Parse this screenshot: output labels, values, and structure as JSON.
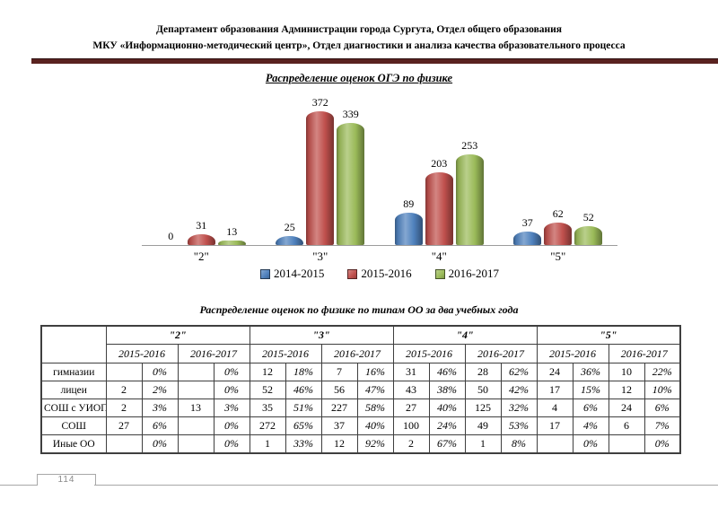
{
  "header": {
    "line1": "Департамент образования Администрации города Сургута, Отдел общего образования",
    "line2": "МКУ «Информационно-методический центр», Отдел диагностики и анализа качества образовательного процесса"
  },
  "chart_data": {
    "type": "bar",
    "title": "Распределение оценок ОГЭ по физике",
    "categories": [
      "\"2\"",
      "\"3\"",
      "\"4\"",
      "\"5\""
    ],
    "series": [
      {
        "name": "2014-2015",
        "color": "#4f81bd",
        "values": [
          0,
          25,
          89,
          37
        ]
      },
      {
        "name": "2015-2016",
        "color": "#c0504d",
        "values": [
          31,
          372,
          203,
          62
        ]
      },
      {
        "name": "2016-2017",
        "color": "#9bbb59",
        "values": [
          13,
          339,
          253,
          52
        ]
      }
    ],
    "xlabel": "",
    "ylabel": "",
    "ylim": [
      0,
      400
    ],
    "grid": false,
    "data_labels": true,
    "legend_position": "bottom"
  },
  "table": {
    "title": "Распределение оценок по физике по типам ОО за два учебных года",
    "group_headers": [
      "\"2\"",
      "\"3\"",
      "\"4\"",
      "\"5\""
    ],
    "year_headers": [
      "2015-2016",
      "2016-2017"
    ],
    "rows": [
      {
        "label": "гимназии",
        "cells": [
          "",
          "0%",
          "",
          "0%",
          "12",
          "18%",
          "7",
          "16%",
          "31",
          "46%",
          "28",
          "62%",
          "24",
          "36%",
          "10",
          "22%"
        ]
      },
      {
        "label": "лицеи",
        "cells": [
          "2",
          "2%",
          "",
          "0%",
          "52",
          "46%",
          "56",
          "47%",
          "43",
          "38%",
          "50",
          "42%",
          "17",
          "15%",
          "12",
          "10%"
        ]
      },
      {
        "label": "СОШ с УИОП",
        "cells": [
          "2",
          "3%",
          "13",
          "3%",
          "35",
          "51%",
          "227",
          "58%",
          "27",
          "40%",
          "125",
          "32%",
          "4",
          "6%",
          "24",
          "6%"
        ]
      },
      {
        "label": "СОШ",
        "cells": [
          "27",
          "6%",
          "",
          "0%",
          "272",
          "65%",
          "37",
          "40%",
          "100",
          "24%",
          "49",
          "53%",
          "17",
          "4%",
          "6",
          "7%"
        ]
      },
      {
        "label": "Иные ОО",
        "cells": [
          "",
          "0%",
          "",
          "0%",
          "1",
          "33%",
          "12",
          "92%",
          "2",
          "67%",
          "1",
          "8%",
          "",
          "0%",
          "",
          "0%"
        ]
      }
    ]
  },
  "footer": {
    "page_number": "114"
  },
  "colors": {
    "accent_line": "#5a2220",
    "axis_line": "#9c9c9c",
    "table_border": "#3f3f3f",
    "footer_gray": "#a8a8a8"
  }
}
